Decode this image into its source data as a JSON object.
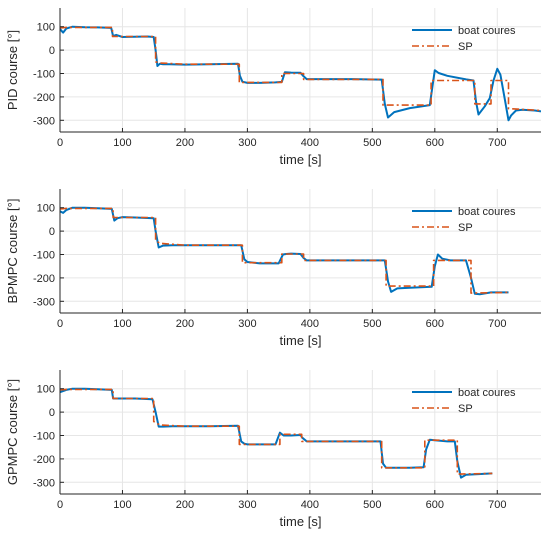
{
  "chart_data": [
    {
      "type": "line",
      "xlabel": "time [s]",
      "ylabel": "PID course [°]",
      "xlim": [
        0,
        770
      ],
      "ylim": [
        -350,
        180
      ],
      "xticks": [
        0,
        100,
        200,
        300,
        400,
        500,
        600,
        700
      ],
      "yticks": [
        100,
        0,
        -100,
        -200,
        -300
      ],
      "grid": true,
      "legend": "top-right",
      "series": [
        {
          "name": "boat coures",
          "color": "#0072BD",
          "style": "solid",
          "x": [
            0,
            5,
            10,
            20,
            40,
            60,
            82,
            85,
            90,
            100,
            120,
            140,
            150,
            153,
            156,
            160,
            165,
            175,
            200,
            240,
            285,
            288,
            292,
            300,
            320,
            345,
            355,
            360,
            370,
            385,
            390,
            395,
            420,
            470,
            515,
            520,
            525,
            535,
            560,
            592,
            596,
            600,
            606,
            620,
            650,
            662,
            666,
            670,
            680,
            688,
            694,
            700,
            705,
            712,
            718,
            722,
            730,
            740,
            760,
            770
          ],
          "y": [
            90,
            75,
            92,
            100,
            98,
            97,
            95,
            60,
            65,
            56,
            57,
            58,
            56,
            0,
            -68,
            -58,
            -60,
            -60,
            -62,
            -60,
            -58,
            -110,
            -135,
            -140,
            -140,
            -138,
            -136,
            -95,
            -96,
            -97,
            -112,
            -124,
            -124,
            -124,
            -126,
            -230,
            -288,
            -265,
            -248,
            -235,
            -160,
            -86,
            -98,
            -110,
            -125,
            -130,
            -220,
            -275,
            -240,
            -205,
            -130,
            -80,
            -105,
            -210,
            -300,
            -280,
            -258,
            -255,
            -258,
            -262
          ]
        },
        {
          "name": "SP",
          "color": "#D95319",
          "style": "dashdot",
          "x": [
            0,
            10,
            84,
            84,
            153,
            153,
            160,
            200,
            287,
            287,
            355,
            355,
            390,
            390,
            517,
            517,
            594,
            594,
            664,
            664,
            690,
            690,
            718,
            718,
            770
          ],
          "y": [
            95,
            97,
            97,
            58,
            58,
            -50,
            -55,
            -60,
            -60,
            -138,
            -138,
            -100,
            -100,
            -125,
            -125,
            -235,
            -235,
            -130,
            -130,
            -230,
            -230,
            -130,
            -130,
            -250,
            -258
          ]
        }
      ]
    },
    {
      "type": "line",
      "xlabel": "time [s]",
      "ylabel": "BPMPC course [°]",
      "xlim": [
        0,
        770
      ],
      "ylim": [
        -350,
        180
      ],
      "xticks": [
        0,
        100,
        200,
        300,
        400,
        500,
        600,
        700
      ],
      "yticks": [
        100,
        0,
        -100,
        -200,
        -300
      ],
      "grid": true,
      "legend": "top-right",
      "series": [
        {
          "name": "boat coures",
          "color": "#0072BD",
          "style": "solid",
          "x": [
            0,
            5,
            10,
            20,
            40,
            60,
            83,
            87,
            92,
            100,
            120,
            150,
            153,
            158,
            165,
            180,
            200,
            240,
            290,
            295,
            300,
            320,
            350,
            357,
            362,
            370,
            385,
            390,
            395,
            420,
            470,
            520,
            525,
            530,
            540,
            560,
            595,
            600,
            605,
            612,
            625,
            650,
            658,
            664,
            672,
            690,
            718
          ],
          "y": [
            85,
            78,
            90,
            100,
            100,
            98,
            95,
            45,
            55,
            60,
            58,
            55,
            0,
            -70,
            -62,
            -60,
            -60,
            -60,
            -60,
            -120,
            -132,
            -138,
            -138,
            -100,
            -98,
            -96,
            -98,
            -115,
            -125,
            -125,
            -125,
            -125,
            -215,
            -260,
            -245,
            -242,
            -238,
            -150,
            -100,
            -118,
            -125,
            -125,
            -200,
            -268,
            -270,
            -262,
            -262
          ]
        },
        {
          "name": "SP",
          "color": "#D95319",
          "style": "dashdot",
          "x": [
            0,
            10,
            85,
            85,
            153,
            153,
            160,
            200,
            292,
            292,
            355,
            355,
            390,
            390,
            522,
            522,
            598,
            598,
            658,
            658,
            718
          ],
          "y": [
            95,
            97,
            97,
            58,
            58,
            -40,
            -52,
            -60,
            -60,
            -135,
            -135,
            -98,
            -98,
            -125,
            -125,
            -235,
            -235,
            -125,
            -125,
            -265,
            -262
          ]
        }
      ]
    },
    {
      "type": "line",
      "xlabel": "time [s]",
      "ylabel": "GPMPC course [°]",
      "xlim": [
        0,
        770
      ],
      "ylim": [
        -350,
        180
      ],
      "xticks": [
        0,
        100,
        200,
        300,
        400,
        500,
        600,
        700
      ],
      "yticks": [
        100,
        0,
        -100,
        -200,
        -300
      ],
      "grid": true,
      "legend": "top-right",
      "series": [
        {
          "name": "boat coures",
          "color": "#0072BD",
          "style": "solid",
          "x": [
            0,
            5,
            10,
            20,
            40,
            60,
            83,
            85,
            100,
            120,
            148,
            153,
            158,
            165,
            180,
            200,
            240,
            285,
            290,
            295,
            300,
            320,
            345,
            352,
            358,
            370,
            385,
            388,
            395,
            420,
            470,
            513,
            517,
            522,
            530,
            560,
            582,
            586,
            592,
            600,
            620,
            632,
            636,
            642,
            650,
            670,
            692
          ],
          "y": [
            85,
            90,
            95,
            100,
            100,
            98,
            95,
            58,
            58,
            58,
            55,
            0,
            -62,
            -62,
            -60,
            -60,
            -60,
            -58,
            -125,
            -135,
            -138,
            -138,
            -138,
            -88,
            -100,
            -100,
            -98,
            -110,
            -125,
            -125,
            -125,
            -125,
            -220,
            -238,
            -238,
            -238,
            -236,
            -160,
            -118,
            -120,
            -125,
            -125,
            -210,
            -280,
            -268,
            -265,
            -262
          ]
        },
        {
          "name": "SP",
          "color": "#D95319",
          "style": "dashdot",
          "x": [
            0,
            10,
            85,
            85,
            150,
            150,
            160,
            200,
            287,
            287,
            352,
            352,
            387,
            387,
            515,
            515,
            584,
            584,
            636,
            636,
            692
          ],
          "y": [
            95,
            97,
            97,
            58,
            58,
            -40,
            -55,
            -60,
            -60,
            -138,
            -138,
            -95,
            -95,
            -125,
            -125,
            -238,
            -238,
            -120,
            -120,
            -265,
            -262
          ]
        }
      ]
    }
  ]
}
